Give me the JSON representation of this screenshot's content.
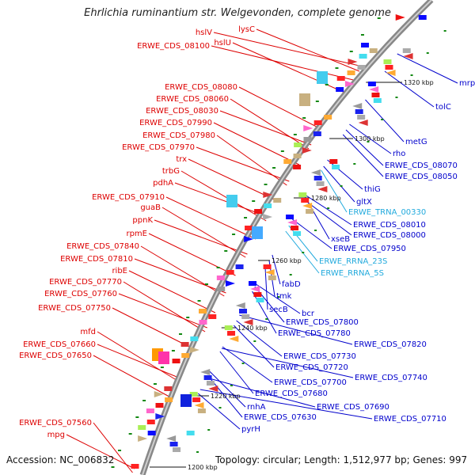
{
  "title": "Ehrlichia ruminantium str. Welgevonden, complete genome",
  "accession": "Accession: NC_006832",
  "summary": "Topology: circular; Length: 1,512,977 bp; Genes: 997",
  "colors": {
    "left_label": "#dd0000",
    "right_label": "#0000cc",
    "rna_label": "#22aadd",
    "backbone": "#999999"
  },
  "kbp_ticks": [
    "1320 kbp",
    "1300 kbp",
    "1280 kbp",
    "1260 kbp",
    "1240 kbp",
    "1220 kbp",
    "1200 kbp"
  ],
  "left_labels": [
    "hslV",
    "lysC",
    "hslU",
    "ERWE_CDS_08100",
    "ERWE_CDS_08080",
    "ERWE_CDS_08060",
    "ERWE_CDS_08030",
    "ERWE_CDS_07990",
    "ERWE_CDS_07980",
    "ERWE_CDS_07970",
    "trx",
    "trbG",
    "pdhA",
    "ERWE_CDS_07910",
    "guaB",
    "ppnK",
    "rpmE",
    "ERWE_CDS_07840",
    "ERWE_CDS_07810",
    "ribE",
    "ERWE_CDS_07770",
    "ERWE_CDS_07760",
    "ERWE_CDS_07750",
    "mfd",
    "ERWE_CDS_07660",
    "ERWE_CDS_07650",
    "ERWE_CDS_07560",
    "mpg"
  ],
  "right_labels": [
    "mrp",
    "tolC",
    "metG",
    "rho",
    "ERWE_CDS_08070",
    "ERWE_CDS_08050",
    "thiG",
    "gltX",
    "ERWE_TRNA_00330",
    "ERWE_CDS_08010",
    "ERWE_CDS_08000",
    "xseB",
    "ERWE_CDS_07950",
    "ERWE_RRNA_23S",
    "ERWE_RRNA_5S",
    "fabD",
    "tmk",
    "secB",
    "bcr",
    "ERWE_CDS_07800",
    "ERWE_CDS_07780",
    "ERWE_CDS_07820",
    "ERWE_CDS_07730",
    "ERWE_CDS_07720",
    "ERWE_CDS_07740",
    "ERWE_CDS_07700",
    "ERWE_CDS_07680",
    "ERWE_CDS_07690",
    "rnhA",
    "ERWE_CDS_07630",
    "ERWE_CDS_07710",
    "pyrH"
  ]
}
